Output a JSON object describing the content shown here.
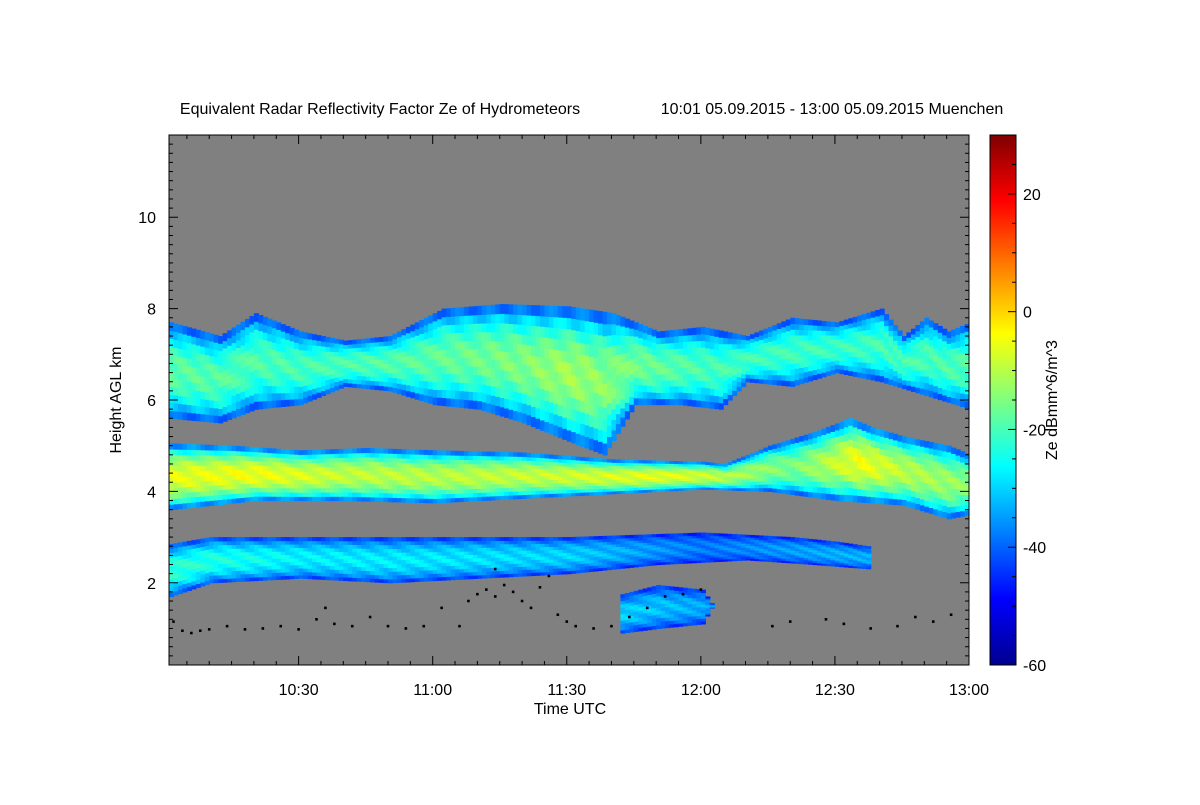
{
  "chart_data": {
    "type": "heatmap",
    "title": "Equivalent Radar Reflectivity Factor Ze of Hydrometeors",
    "period": "10:01 05.09.2015 - 13:00 05.09.2015 Muenchen",
    "xlabel": "Time UTC",
    "ylabel": "Height AGL km",
    "colorbar_label": "Ze dBmm^6/m^3",
    "xlim": [
      "10:01",
      "13:00"
    ],
    "ylim": [
      0.2,
      11.8
    ],
    "zlim": [
      -60,
      30
    ],
    "x_ticks": [
      {
        "value": "10:30",
        "label": "10:30"
      },
      {
        "value": "11:00",
        "label": "11:00"
      },
      {
        "value": "11:30",
        "label": "11:30"
      },
      {
        "value": "12:00",
        "label": "12:00"
      },
      {
        "value": "12:30",
        "label": "12:30"
      },
      {
        "value": "13:00",
        "label": "13:00"
      }
    ],
    "y_ticks": [
      {
        "value": 2,
        "label": "2"
      },
      {
        "value": 4,
        "label": "4"
      },
      {
        "value": 6,
        "label": "6"
      },
      {
        "value": 8,
        "label": "8"
      },
      {
        "value": 10,
        "label": "10"
      }
    ],
    "colorbar_ticks": [
      {
        "value": -60,
        "label": "-60"
      },
      {
        "value": -40,
        "label": "-40"
      },
      {
        "value": -20,
        "label": "-20"
      },
      {
        "value": 0,
        "label": "0"
      },
      {
        "value": 20,
        "label": "20"
      }
    ],
    "no_data_color": "#808080",
    "colormap": "jet",
    "layers": [
      {
        "name": "upper cloud layer",
        "top": [
          [
            "10:01",
            7.7
          ],
          [
            "10:12",
            7.4
          ],
          [
            "10:20",
            7.9
          ],
          [
            "10:30",
            7.5
          ],
          [
            "10:40",
            7.3
          ],
          [
            "10:50",
            7.4
          ],
          [
            "11:02",
            8.0
          ],
          [
            "11:15",
            8.1
          ],
          [
            "11:30",
            8.05
          ],
          [
            "11:40",
            7.9
          ],
          [
            "11:50",
            7.5
          ],
          [
            "12:00",
            7.6
          ],
          [
            "12:10",
            7.4
          ],
          [
            "12:20",
            7.8
          ],
          [
            "12:30",
            7.7
          ],
          [
            "12:40",
            8.0
          ],
          [
            "12:45",
            7.4
          ],
          [
            "12:50",
            7.8
          ],
          [
            "12:55",
            7.5
          ],
          [
            "13:00",
            7.7
          ]
        ],
        "bottom": [
          [
            "10:01",
            5.6
          ],
          [
            "10:12",
            5.5
          ],
          [
            "10:20",
            5.8
          ],
          [
            "10:30",
            5.9
          ],
          [
            "10:40",
            6.3
          ],
          [
            "10:50",
            6.2
          ],
          [
            "11:00",
            5.9
          ],
          [
            "11:10",
            5.8
          ],
          [
            "11:20",
            5.5
          ],
          [
            "11:30",
            5.1
          ],
          [
            "11:38",
            4.8
          ],
          [
            "11:45",
            5.9
          ],
          [
            "11:55",
            5.9
          ],
          [
            "12:04",
            5.8
          ],
          [
            "12:10",
            6.4
          ],
          [
            "12:20",
            6.3
          ],
          [
            "12:30",
            6.6
          ],
          [
            "12:40",
            6.4
          ],
          [
            "12:50",
            6.1
          ],
          [
            "13:00",
            5.8
          ]
        ],
        "peak_ze": [
          [
            "10:01",
            -18
          ],
          [
            "10:30",
            -20
          ],
          [
            "11:00",
            -18
          ],
          [
            "11:20",
            -15
          ],
          [
            "11:30",
            -12
          ],
          [
            "12:00",
            -20
          ],
          [
            "12:30",
            -21
          ],
          [
            "13:00",
            -19
          ]
        ]
      },
      {
        "name": "middle cloud layer",
        "top": [
          [
            "10:01",
            5.05
          ],
          [
            "10:15",
            5.0
          ],
          [
            "10:30",
            4.9
          ],
          [
            "10:45",
            4.95
          ],
          [
            "11:00",
            4.9
          ],
          [
            "11:20",
            4.85
          ],
          [
            "11:40",
            4.7
          ],
          [
            "12:00",
            4.65
          ],
          [
            "12:05",
            4.6
          ],
          [
            "12:15",
            5.0
          ],
          [
            "12:25",
            5.3
          ],
          [
            "12:33",
            5.6
          ],
          [
            "12:38",
            5.4
          ],
          [
            "12:45",
            5.2
          ],
          [
            "12:55",
            5.0
          ],
          [
            "13:00",
            4.8
          ]
        ],
        "bottom": [
          [
            "10:01",
            3.6
          ],
          [
            "10:20",
            3.8
          ],
          [
            "10:40",
            3.8
          ],
          [
            "11:00",
            3.75
          ],
          [
            "11:20",
            3.85
          ],
          [
            "11:40",
            3.95
          ],
          [
            "12:00",
            4.05
          ],
          [
            "12:15",
            4.0
          ],
          [
            "12:30",
            3.8
          ],
          [
            "12:45",
            3.7
          ],
          [
            "12:55",
            3.4
          ],
          [
            "13:00",
            3.5
          ]
        ],
        "peak_ze": [
          [
            "10:01",
            -6
          ],
          [
            "10:20",
            -5
          ],
          [
            "10:40",
            -9
          ],
          [
            "11:00",
            -10
          ],
          [
            "11:30",
            -8
          ],
          [
            "11:50",
            -6
          ],
          [
            "12:00",
            -8
          ],
          [
            "12:20",
            -16
          ],
          [
            "12:35",
            -5
          ],
          [
            "12:45",
            -10
          ],
          [
            "13:00",
            -14
          ]
        ]
      },
      {
        "name": "lower cloud layer",
        "top": [
          [
            "10:01",
            2.85
          ],
          [
            "10:10",
            3.0
          ],
          [
            "10:30",
            3.0
          ],
          [
            "11:00",
            3.0
          ],
          [
            "11:30",
            3.0
          ],
          [
            "12:00",
            3.1
          ],
          [
            "12:20",
            3.0
          ],
          [
            "12:30",
            2.9
          ],
          [
            "12:37",
            2.8
          ],
          [
            "12:38",
            2.3
          ]
        ],
        "bottom": [
          [
            "10:01",
            1.7
          ],
          [
            "10:10",
            2.0
          ],
          [
            "10:30",
            2.1
          ],
          [
            "10:50",
            2.0
          ],
          [
            "11:10",
            2.1
          ],
          [
            "11:30",
            2.2
          ],
          [
            "11:50",
            2.4
          ],
          [
            "12:10",
            2.5
          ],
          [
            "12:25",
            2.4
          ],
          [
            "12:38",
            2.3
          ]
        ],
        "peak_ze": [
          [
            "10:01",
            -22
          ],
          [
            "10:30",
            -27
          ],
          [
            "11:00",
            -28
          ],
          [
            "11:30",
            -30
          ],
          [
            "12:00",
            -38
          ],
          [
            "12:30",
            -33
          ]
        ]
      },
      {
        "name": "boundary layer patches",
        "top": [
          [
            "11:42",
            1.75
          ],
          [
            "11:50",
            1.95
          ],
          [
            "12:00",
            1.85
          ],
          [
            "12:02",
            1.55
          ]
        ],
        "bottom": [
          [
            "11:42",
            0.9
          ],
          [
            "11:50",
            1.0
          ],
          [
            "12:00",
            1.1
          ],
          [
            "12:02",
            1.45
          ]
        ],
        "peak_ze": [
          [
            "11:42",
            -30
          ],
          [
            "12:02",
            -34
          ]
        ]
      }
    ],
    "cloud_base_points": [
      [
        "10:02",
        1.15
      ],
      [
        "10:04",
        0.95
      ],
      [
        "10:06",
        0.9
      ],
      [
        "10:08",
        0.95
      ],
      [
        "10:10",
        0.98
      ],
      [
        "10:14",
        1.05
      ],
      [
        "10:18",
        0.98
      ],
      [
        "10:22",
        1.0
      ],
      [
        "10:26",
        1.05
      ],
      [
        "10:30",
        0.98
      ],
      [
        "10:34",
        1.2
      ],
      [
        "10:36",
        1.45
      ],
      [
        "10:38",
        1.1
      ],
      [
        "10:42",
        1.05
      ],
      [
        "10:46",
        1.25
      ],
      [
        "10:50",
        1.05
      ],
      [
        "10:54",
        1.0
      ],
      [
        "10:58",
        1.05
      ],
      [
        "11:02",
        1.45
      ],
      [
        "11:06",
        1.05
      ],
      [
        "11:08",
        1.6
      ],
      [
        "11:10",
        1.75
      ],
      [
        "11:12",
        1.85
      ],
      [
        "11:14",
        1.7
      ],
      [
        "11:16",
        1.95
      ],
      [
        "11:18",
        1.8
      ],
      [
        "11:20",
        1.6
      ],
      [
        "11:22",
        1.45
      ],
      [
        "11:24",
        1.9
      ],
      [
        "11:26",
        2.15
      ],
      [
        "11:28",
        1.3
      ],
      [
        "11:30",
        1.15
      ],
      [
        "11:32",
        1.05
      ],
      [
        "11:36",
        1.0
      ],
      [
        "11:40",
        1.05
      ],
      [
        "11:44",
        1.25
      ],
      [
        "11:48",
        1.45
      ],
      [
        "11:52",
        1.7
      ],
      [
        "11:56",
        1.75
      ],
      [
        "12:00",
        1.85
      ],
      [
        "12:16",
        1.05
      ],
      [
        "12:20",
        1.15
      ],
      [
        "12:28",
        1.2
      ],
      [
        "12:32",
        1.1
      ],
      [
        "12:38",
        1.0
      ],
      [
        "12:44",
        1.05
      ],
      [
        "12:48",
        1.25
      ],
      [
        "12:52",
        1.15
      ],
      [
        "12:56",
        1.3
      ],
      [
        "11:14",
        2.3
      ]
    ]
  }
}
